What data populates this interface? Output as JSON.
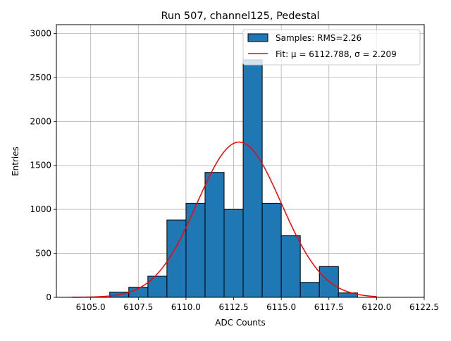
{
  "chart_data": {
    "type": "bar",
    "title": "Run 507, channel125, Pedestal",
    "xlabel": "ADC Counts",
    "ylabel": "Entries",
    "xlim": [
      6103.2,
      6122.5
    ],
    "ylim": [
      0,
      3100
    ],
    "grid": true,
    "xticks": [
      6105.0,
      6107.5,
      6110.0,
      6112.5,
      6115.0,
      6117.5,
      6120.0,
      6122.5
    ],
    "xtick_labels": [
      "6105.0",
      "6107.5",
      "6110.0",
      "6112.5",
      "6115.0",
      "6117.5",
      "6120.0",
      "6122.5"
    ],
    "yticks": [
      0,
      500,
      1000,
      1500,
      2000,
      2500,
      3000
    ],
    "ytick_labels": [
      "0",
      "500",
      "1000",
      "1500",
      "2000",
      "2500",
      "3000"
    ],
    "bins": [
      {
        "left": 6106,
        "right": 6107,
        "value": 60
      },
      {
        "left": 6107,
        "right": 6108,
        "value": 115
      },
      {
        "left": 6108,
        "right": 6109,
        "value": 240
      },
      {
        "left": 6109,
        "right": 6110,
        "value": 880
      },
      {
        "left": 6110,
        "right": 6111,
        "value": 1070
      },
      {
        "left": 6111,
        "right": 6112,
        "value": 1420
      },
      {
        "left": 6112,
        "right": 6113,
        "value": 1000
      },
      {
        "left": 6113,
        "right": 6114,
        "value": 2700
      },
      {
        "left": 6114,
        "right": 6115,
        "value": 1070
      },
      {
        "left": 6115,
        "right": 6116,
        "value": 700
      },
      {
        "left": 6116,
        "right": 6117,
        "value": 170
      },
      {
        "left": 6117,
        "right": 6118,
        "value": 350
      },
      {
        "left": 6118,
        "right": 6119,
        "value": 50
      }
    ],
    "fit": {
      "mu": 6112.788,
      "sigma": 2.209,
      "amplitude": 1765,
      "x_range": [
        6104,
        6120
      ]
    },
    "series": [
      {
        "name": "Samples: RMS=2.26",
        "kind": "histogram",
        "color": "#1f77b4"
      },
      {
        "name": "Fit: μ = 6112.788, σ = 2.209",
        "kind": "line",
        "color": "#ff0000"
      }
    ],
    "legend_position": "top-right"
  }
}
